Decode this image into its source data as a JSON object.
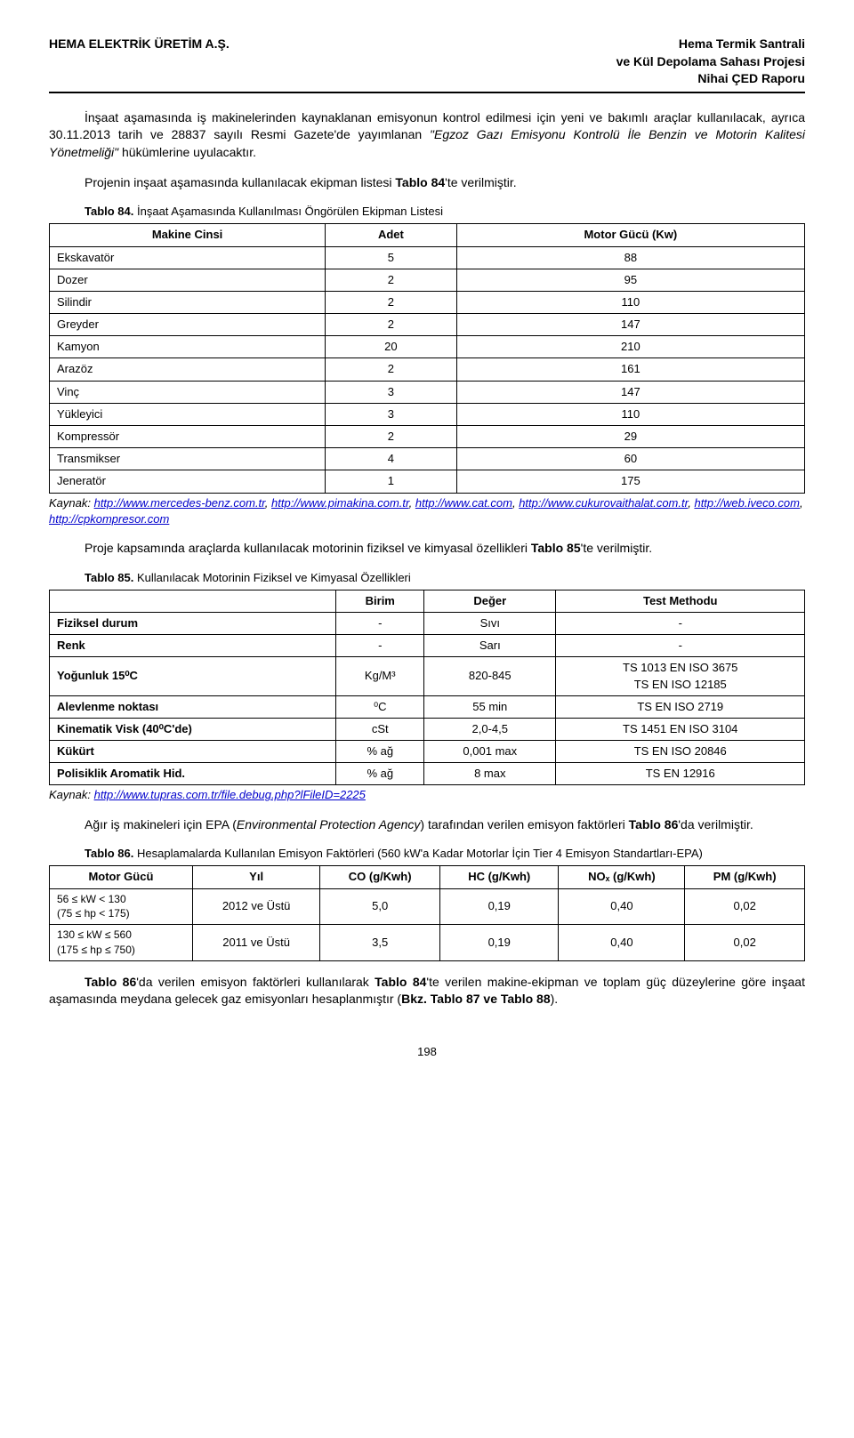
{
  "header": {
    "left": "HEMA ELEKTRİK ÜRETİM A.Ş.",
    "right1": "Hema Termik Santrali",
    "right2": "ve Kül Depolama Sahası Projesi",
    "right3": "Nihai ÇED Raporu"
  },
  "p1a": "İnşaat aşamasında iş makinelerinden kaynaklanan emisyonun kontrol edilmesi için yeni ve bakımlı araçlar kullanılacak, ayrıca 30.11.2013 tarih ve 28837 sayılı Resmi Gazete'de yayımlanan ",
  "p1_italic": "\"Egzoz Gazı Emisyonu Kontrolü İle Benzin ve Motorin Kalitesi Yönetmeliği\"",
  "p1b": " hükümlerine uyulacaktır.",
  "p2a": "Projenin inşaat aşamasında kullanılacak ekipman listesi ",
  "p2b": "Tablo 84",
  "p2c": "'te verilmiştir.",
  "tbl84": {
    "caption_bold": "Tablo 84.",
    "caption_rest": " İnşaat Aşamasında Kullanılması Öngörülen Ekipman Listesi",
    "h1": "Makine Cinsi",
    "h2": "Adet",
    "h3": "Motor Gücü (Kw)",
    "rows": [
      [
        "Ekskavatör",
        "5",
        "88"
      ],
      [
        "Dozer",
        "2",
        "95"
      ],
      [
        "Silindir",
        "2",
        "110"
      ],
      [
        "Greyder",
        "2",
        "147"
      ],
      [
        "Kamyon",
        "20",
        "210"
      ],
      [
        "Arazöz",
        "2",
        "161"
      ],
      [
        "Vinç",
        "3",
        "147"
      ],
      [
        "Yükleyici",
        "3",
        "110"
      ],
      [
        "Kompressör",
        "2",
        "29"
      ],
      [
        "Transmikser",
        "4",
        "60"
      ],
      [
        "Jeneratör",
        "1",
        "175"
      ]
    ],
    "src_label": "Kaynak: ",
    "src1": "http://www.mercedes-benz.com.tr",
    "src2": "http://www.pimakina.com.tr",
    "src3": "http://www.cat.com",
    "src4": "http://www.cukurovaithalat.com.tr",
    "src5": "http://web.iveco.com",
    "src6": "http://cpkompresor.com"
  },
  "p3a": "Proje kapsamında araçlarda kullanılacak motorinin fiziksel ve kimyasal özellikleri ",
  "p3b": "Tablo 85",
  "p3c": "'te verilmiştir.",
  "tbl85": {
    "caption_bold": "Tablo 85.",
    "caption_rest": " Kullanılacak Motorinin Fiziksel ve Kimyasal Özellikleri",
    "h1": "",
    "h2": "Birim",
    "h3": "Değer",
    "h4": "Test Methodu",
    "rows": [
      [
        "Fiziksel durum",
        "-",
        "Sıvı",
        "-"
      ],
      [
        "Renk",
        "-",
        "Sarı",
        "-"
      ],
      [
        "Yoğunluk 15⁰C",
        "Kg/M³",
        "820-845",
        "TS 1013 EN ISO 3675\nTS EN ISO 12185"
      ],
      [
        "Alevlenme noktası",
        "⁰C",
        "55 min",
        "TS EN ISO 2719"
      ],
      [
        "Kinematik Visk (40⁰C'de)",
        "cSt",
        "2,0-4,5",
        "TS 1451 EN ISO 3104"
      ],
      [
        "Kükürt",
        "% ağ",
        "0,001 max",
        "TS EN ISO 20846"
      ],
      [
        "Polisiklik Aromatik Hid.",
        "% ağ",
        "8 max",
        "TS EN 12916"
      ]
    ],
    "src_label": "Kaynak: ",
    "src_link": "http://www.tupras.com.tr/file.debug.php?lFileID=2225"
  },
  "p4a": "Ağır iş makineleri için EPA (",
  "p4_it": "Environmental Protection Agency",
  "p4b": ") tarafından verilen emisyon faktörleri ",
  "p4c": "Tablo 86",
  "p4d": "'da verilmiştir.",
  "tbl86": {
    "caption_bold": "Tablo 86.",
    "caption_rest": " Hesaplamalarda Kullanılan Emisyon Faktörleri (560 kW'a Kadar Motorlar İçin Tier 4 Emisyon Standartları-EPA)",
    "h1": "Motor Gücü",
    "h2": "Yıl",
    "h3": "CO (g/Kwh)",
    "h4": "HC (g/Kwh)",
    "h5": "NOₓ (g/Kwh)",
    "h6": "PM (g/Kwh)",
    "rows": [
      [
        "56 ≤ kW < 130\n(75 ≤ hp < 175)",
        "2012 ve Üstü",
        "5,0",
        "0,19",
        "0,40",
        "0,02"
      ],
      [
        "130 ≤ kW ≤ 560\n(175 ≤ hp ≤ 750)",
        "2011 ve Üstü",
        "3,5",
        "0,19",
        "0,40",
        "0,02"
      ]
    ]
  },
  "p5a": "Tablo 86",
  "p5b": "'da verilen emisyon faktörleri kullanılarak ",
  "p5c": "Tablo 84",
  "p5d": "'te verilen makine-ekipman ve toplam güç düzeylerine göre inşaat aşamasında meydana gelecek gaz emisyonları hesaplanmıştır (",
  "p5e": "Bkz. Tablo 87 ve Tablo 88",
  "p5f": ").",
  "footer": "198"
}
